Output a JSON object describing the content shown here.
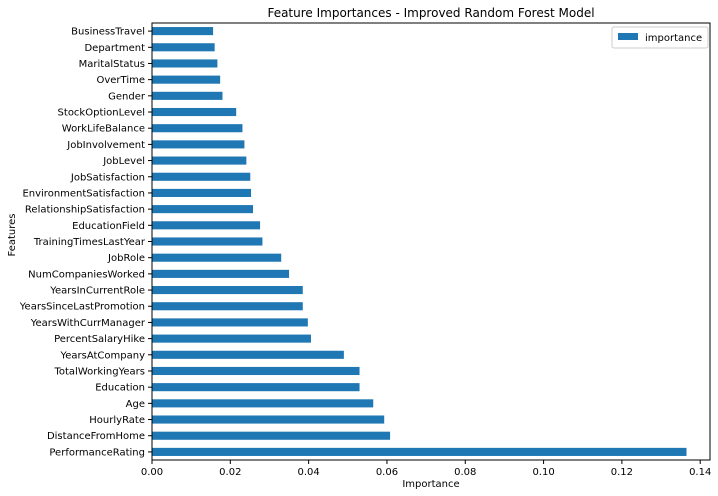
{
  "chart_data": {
    "type": "bar",
    "orientation": "horizontal",
    "title": "Feature Importances - Improved Random Forest Model",
    "xlabel": "Importance",
    "ylabel": "Features",
    "xlim": [
      0,
      0.1425
    ],
    "xticks": [
      0.0,
      0.02,
      0.04,
      0.06,
      0.08,
      0.1,
      0.12,
      0.14
    ],
    "xtick_labels": [
      "0.00",
      "0.02",
      "0.04",
      "0.06",
      "0.08",
      "0.10",
      "0.12",
      "0.14"
    ],
    "grid": false,
    "legend": {
      "placement": "top-right",
      "entries": [
        "importance"
      ]
    },
    "color": "#1f77b4",
    "categories": [
      "PerformanceRating",
      "DistanceFromHome",
      "HourlyRate",
      "Age",
      "Education",
      "TotalWorkingYears",
      "YearsAtCompany",
      "PercentSalaryHike",
      "YearsWithCurrManager",
      "YearsSinceLastPromotion",
      "YearsInCurrentRole",
      "NumCompaniesWorked",
      "JobRole",
      "TrainingTimesLastYear",
      "EducationField",
      "RelationshipSatisfaction",
      "EnvironmentSatisfaction",
      "JobSatisfaction",
      "JobLevel",
      "JobInvolvement",
      "WorkLifeBalance",
      "StockOptionLevel",
      "Gender",
      "OverTime",
      "MaritalStatus",
      "Department",
      "BusinessTravel"
    ],
    "series": [
      {
        "name": "importance",
        "values": [
          0.1365,
          0.0608,
          0.0593,
          0.0565,
          0.053,
          0.053,
          0.049,
          0.0406,
          0.0398,
          0.0385,
          0.0385,
          0.035,
          0.033,
          0.0282,
          0.0276,
          0.0258,
          0.0253,
          0.0251,
          0.0241,
          0.0236,
          0.0231,
          0.0215,
          0.018,
          0.0174,
          0.0167,
          0.016,
          0.0156
        ]
      }
    ]
  }
}
